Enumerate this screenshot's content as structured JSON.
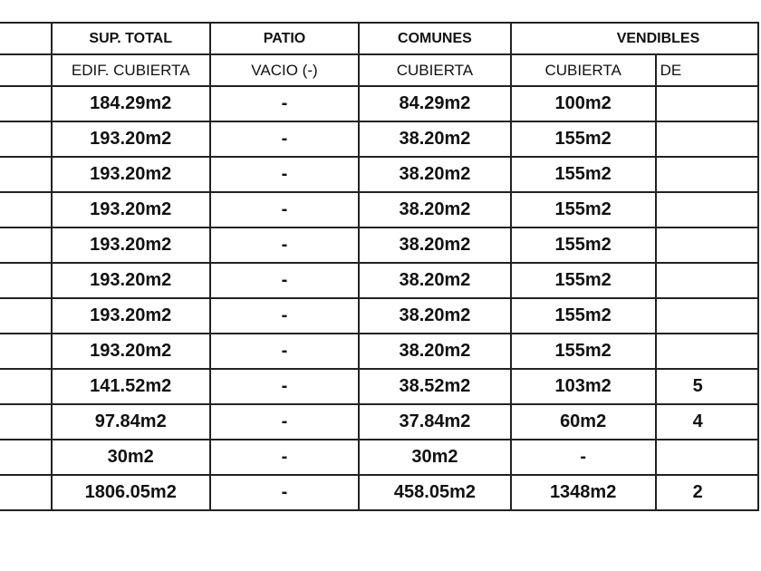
{
  "header_row1": [
    "",
    "SUP. TOTAL",
    "PATIO",
    "COMUNES",
    "VENDIBLES"
  ],
  "header_row2": [
    "",
    "EDIF. CUBIERTA",
    "VACIO (-)",
    "CUBIERTA",
    "CUBIERTA",
    "DE"
  ],
  "rows": [
    [
      "",
      "184.29m2",
      "-",
      "84.29m2",
      "100m2",
      ""
    ],
    [
      "",
      "193.20m2",
      "-",
      "38.20m2",
      "155m2",
      ""
    ],
    [
      "",
      "193.20m2",
      "-",
      "38.20m2",
      "155m2",
      ""
    ],
    [
      "",
      "193.20m2",
      "-",
      "38.20m2",
      "155m2",
      ""
    ],
    [
      "",
      "193.20m2",
      "-",
      "38.20m2",
      "155m2",
      ""
    ],
    [
      "",
      "193.20m2",
      "-",
      "38.20m2",
      "155m2",
      ""
    ],
    [
      "",
      "193.20m2",
      "-",
      "38.20m2",
      "155m2",
      ""
    ],
    [
      "",
      "193.20m2",
      "-",
      "38.20m2",
      "155m2",
      ""
    ],
    [
      "",
      "141.52m2",
      "-",
      "38.52m2",
      "103m2",
      "5"
    ],
    [
      "",
      "97.84m2",
      "-",
      "37.84m2",
      "60m2",
      "4"
    ],
    [
      "",
      "30m2",
      "-",
      "30m2",
      "-",
      ""
    ],
    [
      "",
      "1806.05m2",
      "-",
      "458.05m2",
      "1348m2",
      "2"
    ]
  ]
}
